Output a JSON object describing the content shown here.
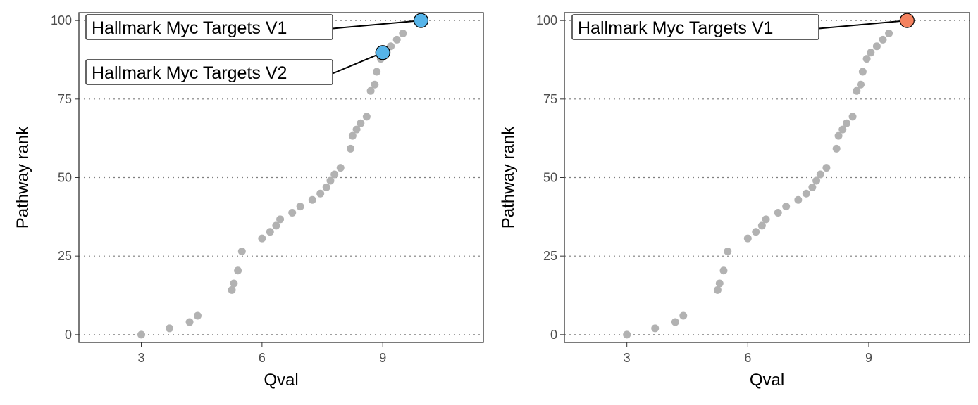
{
  "chart_data": [
    {
      "type": "scatter",
      "xlabel": "Qval",
      "ylabel": "Pathway rank",
      "xlim": [
        1.45,
        11.5
      ],
      "ylim": [
        -2.5,
        102.5
      ],
      "xticks": [
        3,
        6,
        9
      ],
      "yticks": [
        0,
        25,
        50,
        75,
        100
      ],
      "grid": "horizontal dotted",
      "points": [
        [
          3.0,
          0
        ],
        [
          3.7,
          2
        ],
        [
          4.2,
          4
        ],
        [
          4.4,
          6
        ],
        [
          5.25,
          14.2
        ],
        [
          5.3,
          16.3
        ],
        [
          5.4,
          20.4
        ],
        [
          5.5,
          26.5
        ],
        [
          6.0,
          30.6
        ],
        [
          6.2,
          32.7
        ],
        [
          6.35,
          34.7
        ],
        [
          6.45,
          36.7
        ],
        [
          6.75,
          38.8
        ],
        [
          6.95,
          40.8
        ],
        [
          7.25,
          42.9
        ],
        [
          7.45,
          44.9
        ],
        [
          7.6,
          46.9
        ],
        [
          7.7,
          49
        ],
        [
          7.8,
          51
        ],
        [
          7.95,
          53.1
        ],
        [
          8.2,
          59.2
        ],
        [
          8.25,
          63.3
        ],
        [
          8.35,
          65.3
        ],
        [
          8.45,
          67.3
        ],
        [
          8.6,
          69.4
        ],
        [
          8.7,
          77.6
        ],
        [
          8.8,
          79.6
        ],
        [
          8.85,
          83.7
        ],
        [
          8.95,
          87.8
        ],
        [
          9.1,
          89.8
        ],
        [
          9.2,
          91.8
        ],
        [
          9.35,
          93.9
        ],
        [
          9.5,
          95.9
        ]
      ],
      "highlights": [
        {
          "x": 9.95,
          "y": 100,
          "label": "Hallmark Myc Targets V1",
          "color": "#56B4E9"
        },
        {
          "x": 9.0,
          "y": 89.8,
          "label": "Hallmark Myc Targets V2",
          "color": "#56B4E9"
        }
      ],
      "point_color": "#b2b2b2"
    },
    {
      "type": "scatter",
      "xlabel": "Qval",
      "ylabel": "Pathway rank",
      "xlim": [
        1.45,
        11.5
      ],
      "ylim": [
        -2.5,
        102.5
      ],
      "xticks": [
        3,
        6,
        9
      ],
      "yticks": [
        0,
        25,
        50,
        75,
        100
      ],
      "grid": "horizontal dotted",
      "points": [
        [
          3.0,
          0
        ],
        [
          3.7,
          2
        ],
        [
          4.2,
          4
        ],
        [
          4.4,
          6
        ],
        [
          5.25,
          14.2
        ],
        [
          5.3,
          16.3
        ],
        [
          5.4,
          20.4
        ],
        [
          5.5,
          26.5
        ],
        [
          6.0,
          30.6
        ],
        [
          6.2,
          32.7
        ],
        [
          6.35,
          34.7
        ],
        [
          6.45,
          36.7
        ],
        [
          6.75,
          38.8
        ],
        [
          6.95,
          40.8
        ],
        [
          7.25,
          42.9
        ],
        [
          7.45,
          44.9
        ],
        [
          7.6,
          46.9
        ],
        [
          7.7,
          49
        ],
        [
          7.8,
          51
        ],
        [
          7.95,
          53.1
        ],
        [
          8.2,
          59.2
        ],
        [
          8.25,
          63.3
        ],
        [
          8.35,
          65.3
        ],
        [
          8.45,
          67.3
        ],
        [
          8.6,
          69.4
        ],
        [
          8.7,
          77.6
        ],
        [
          8.8,
          79.6
        ],
        [
          8.85,
          83.7
        ],
        [
          8.95,
          87.8
        ],
        [
          9.05,
          89.8
        ],
        [
          9.2,
          91.8
        ],
        [
          9.35,
          93.9
        ],
        [
          9.5,
          95.9
        ]
      ],
      "highlights": [
        {
          "x": 9.95,
          "y": 100,
          "label": "Hallmark Myc Targets V1",
          "color": "#F4825F"
        }
      ],
      "point_color": "#b2b2b2"
    }
  ]
}
